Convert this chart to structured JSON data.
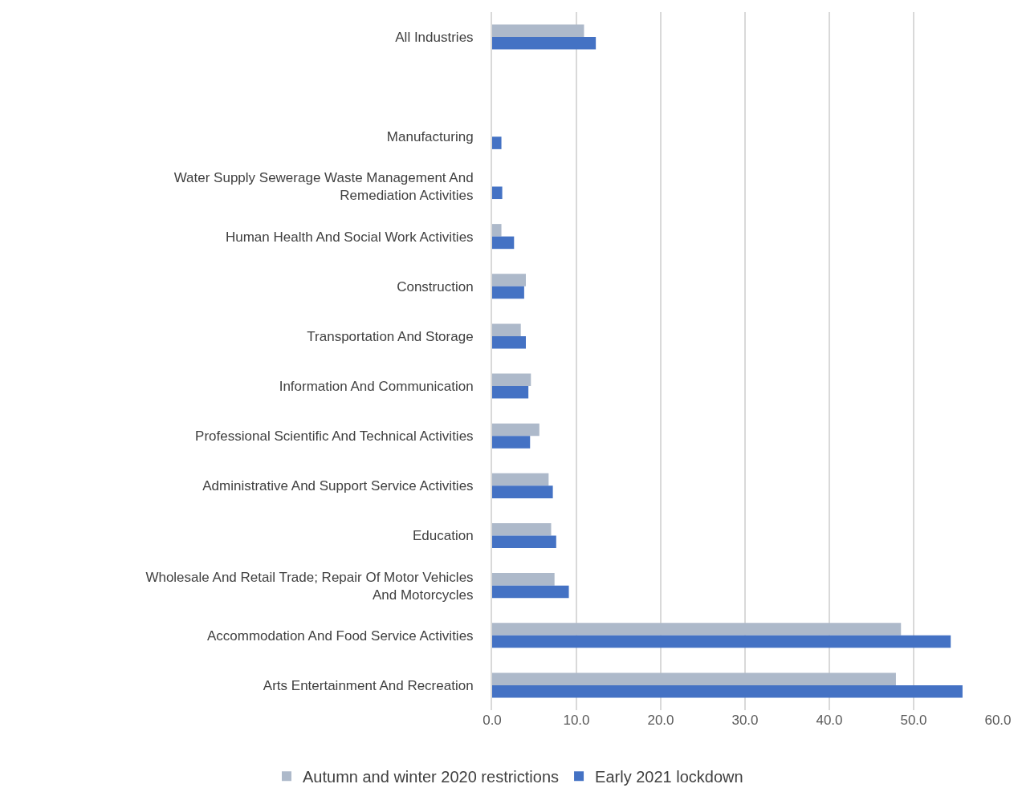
{
  "chart_data": {
    "type": "bar",
    "orientation": "horizontal",
    "categories": [
      "All Industries",
      null,
      "Manufacturing",
      "Water Supply Sewerage Waste Management And Remediation Activities",
      "Human Health And Social Work Activities",
      "Construction",
      "Transportation And Storage",
      "Information And Communication",
      "Professional Scientific And Technical Activities",
      "Administrative And Support Service Activities",
      "Education",
      "Wholesale And Retail Trade; Repair Of Motor Vehicles And Motorcycles",
      "Accommodation And Food Service Activities",
      "Arts Entertainment And Recreation"
    ],
    "series": [
      {
        "name": "Autumn and winter 2020 restrictions",
        "color": "#adb9ca",
        "values": [
          10.9,
          null,
          null,
          null,
          1.1,
          4.0,
          3.4,
          4.6,
          5.6,
          6.7,
          7.0,
          7.4,
          48.5,
          47.9
        ]
      },
      {
        "name": "Early 2021 lockdown",
        "color": "#4472c4",
        "values": [
          12.3,
          null,
          1.1,
          1.2,
          2.6,
          3.8,
          4.0,
          4.3,
          4.5,
          7.2,
          7.6,
          9.1,
          54.4,
          55.8
        ]
      }
    ],
    "xlim": [
      0,
      60
    ],
    "xticks": [
      {
        "value": 0,
        "label": "0.0"
      },
      {
        "value": 10,
        "label": "10.0"
      },
      {
        "value": 20,
        "label": "20.0"
      },
      {
        "value": 30,
        "label": "30.0"
      },
      {
        "value": 40,
        "label": "40.0"
      },
      {
        "value": 50,
        "label": "50.0"
      },
      {
        "value": 60,
        "label": "60.0"
      }
    ],
    "grid": "x",
    "legend": "bottom"
  }
}
